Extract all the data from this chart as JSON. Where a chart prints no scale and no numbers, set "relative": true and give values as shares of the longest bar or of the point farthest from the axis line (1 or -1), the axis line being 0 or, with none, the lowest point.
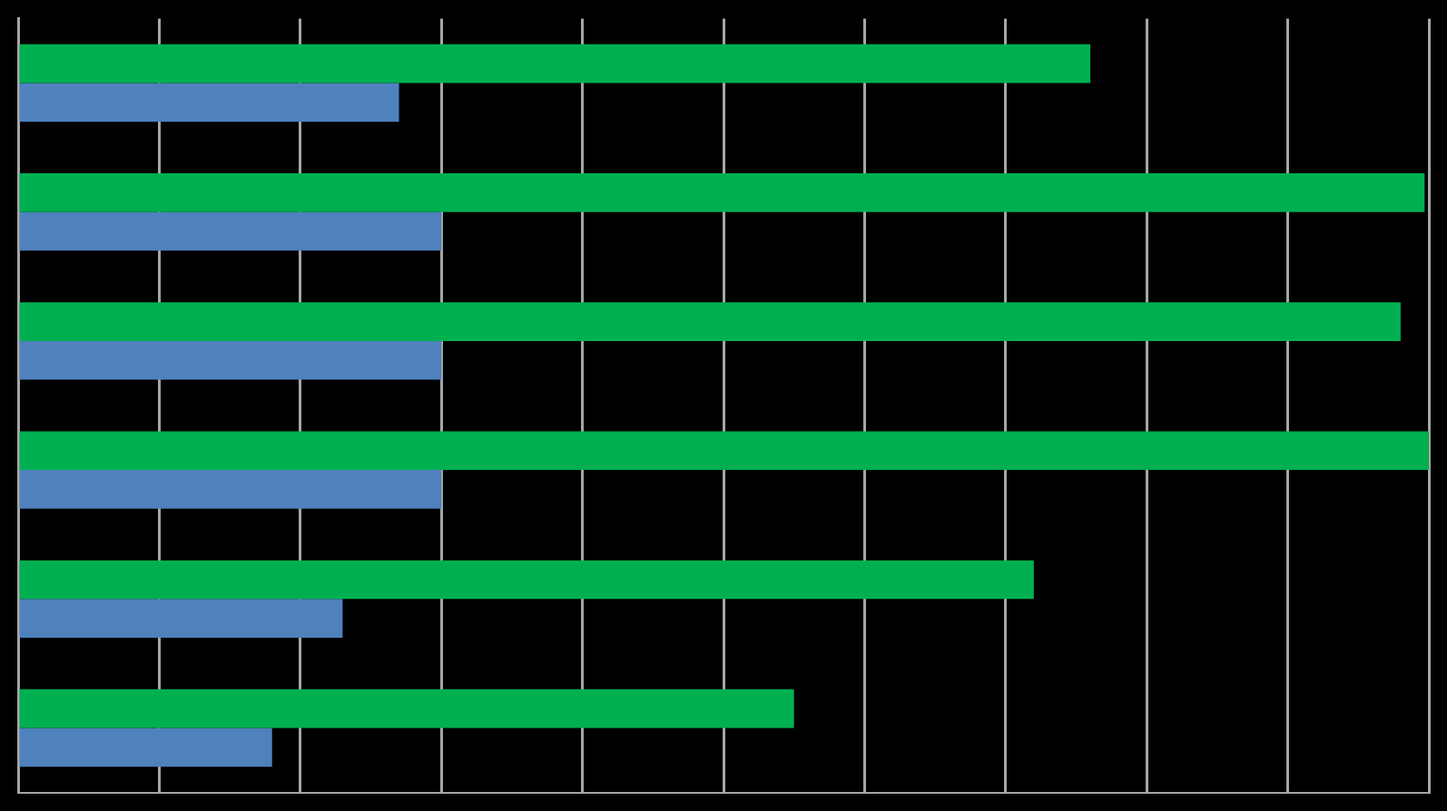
{
  "chart_data": {
    "type": "bar",
    "orientation": "horizontal",
    "relative": true,
    "grid": "x",
    "legend": false,
    "categories": [
      null,
      null,
      null,
      null,
      null,
      null
    ],
    "series": [
      {
        "color": "#00b050",
        "values": [
          0.76,
          0.997,
          0.98,
          1,
          0.72,
          0.55
        ]
      },
      {
        "color": "#4f81bd",
        "values": [
          0.27,
          0.3,
          0.3,
          0.3,
          0.23,
          0.18
        ]
      }
    ]
  }
}
